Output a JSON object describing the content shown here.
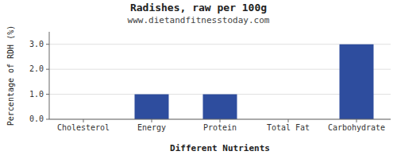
{
  "chart_data": {
    "type": "bar",
    "title": "Radishes, raw per 100g",
    "subtitle": "www.dietandfitnesstoday.com",
    "xlabel": "Different Nutrients",
    "ylabel": "Percentage of RDH (%)",
    "categories": [
      "Cholesterol",
      "Energy",
      "Protein",
      "Total Fat",
      "Carbohydrate"
    ],
    "values": [
      0,
      1.0,
      1.0,
      0,
      3.0
    ],
    "color": "#2e4d9e",
    "ylim": [
      0,
      3.5
    ],
    "yticks": [
      {
        "value": 0,
        "label": "0.0"
      },
      {
        "value": 1,
        "label": "1.0"
      },
      {
        "value": 2,
        "label": "2.0"
      },
      {
        "value": 3,
        "label": "3.0"
      }
    ],
    "grid": true
  }
}
